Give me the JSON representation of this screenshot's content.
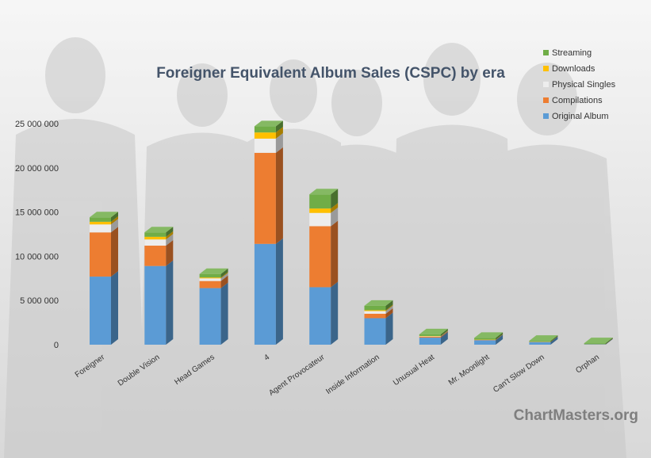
{
  "chart_data": {
    "type": "bar",
    "stacked": true,
    "title": "Foreigner Equivalent Album Sales (CSPC) by era",
    "xlabel": "",
    "ylabel": "",
    "ylim": [
      0,
      25000000
    ],
    "yticks": [
      "0",
      "5 000 000",
      "10 000 000",
      "15 000 000",
      "20 000 000",
      "25 000 000"
    ],
    "ytick_values": [
      0,
      5000000,
      10000000,
      15000000,
      20000000,
      25000000
    ],
    "categories": [
      "Foreigner",
      "Double Vision",
      "Head Games",
      "4",
      "Agent Provocateur",
      "Inside Information",
      "Unusual Heat",
      "Mr. Moonlight",
      "Can't Slow Down",
      "Orphan"
    ],
    "series": [
      {
        "name": "Original Album",
        "color": "#5b9bd5",
        "values": [
          7700000,
          8900000,
          6400000,
          11400000,
          6500000,
          3000000,
          800000,
          500000,
          300000,
          50000
        ]
      },
      {
        "name": "Compilations",
        "color": "#ed7d31",
        "values": [
          5000000,
          2300000,
          800000,
          10300000,
          6900000,
          500000,
          100000,
          30000,
          20000,
          10000
        ]
      },
      {
        "name": "Physical Singles",
        "color": "#ededed",
        "values": [
          900000,
          700000,
          300000,
          1600000,
          1500000,
          300000,
          50000,
          20000,
          10000,
          5000
        ]
      },
      {
        "name": "Downloads",
        "color": "#ffc000",
        "values": [
          300000,
          300000,
          100000,
          700000,
          500000,
          100000,
          30000,
          20000,
          10000,
          5000
        ]
      },
      {
        "name": "Streaming",
        "color": "#70ad47",
        "values": [
          500000,
          500000,
          400000,
          700000,
          1600000,
          500000,
          200000,
          200000,
          100000,
          100000
        ]
      }
    ],
    "legend_position": "top-right",
    "grid": false
  },
  "watermark": "ChartMasters.org"
}
